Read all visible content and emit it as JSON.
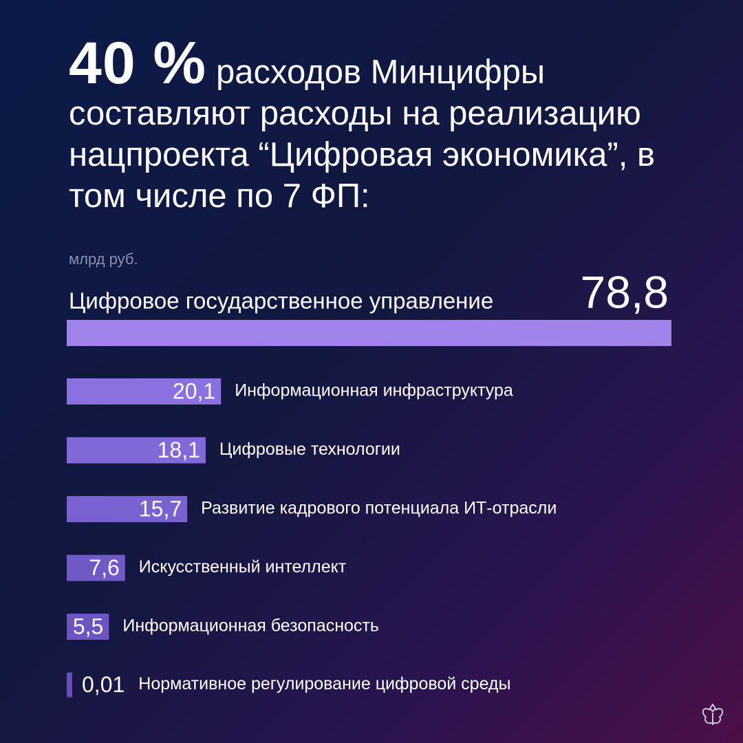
{
  "chart_data": {
    "type": "bar",
    "title_lead": "40 %",
    "title": "расходов Минцифры составляют расходы на реализацию нацпроекта “Цифровая экономика”, в том числе по 7 ФП:",
    "unit": "млрд руб.",
    "categories": [
      "Цифровое государственное управление",
      "Информационная инфраструктура",
      "Цифровые технологии",
      "Развитие кадрового потенциала ИТ-отрасли",
      "Искусственный интеллект",
      "Информационная безопасность",
      "Нормативное регулирование цифровой среды"
    ],
    "values": [
      78.8,
      20.1,
      18.1,
      15.7,
      7.6,
      5.5,
      0.01
    ],
    "value_labels": [
      "78,8",
      "20,1",
      "18,1",
      "15,7",
      "7,6",
      "5,5",
      "0,01"
    ],
    "colors": [
      "#a084ec",
      "#8a70e0",
      "#8269d9",
      "#7a62d2",
      "#705ac8",
      "#6a55c2",
      "#6450bb"
    ]
  }
}
